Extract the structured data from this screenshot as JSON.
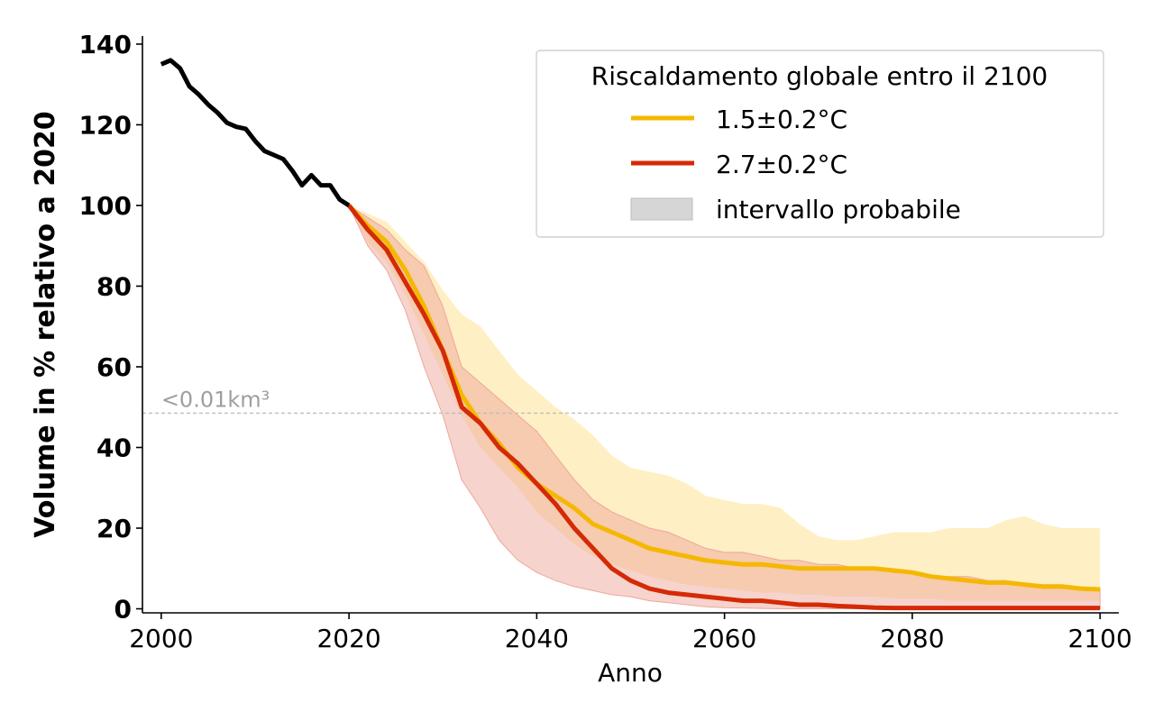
{
  "chart_data": {
    "type": "line",
    "xlabel": "Anno",
    "ylabel": "Volume in % relativo a 2020",
    "xlim": [
      1998,
      2102
    ],
    "ylim": [
      -1,
      142
    ],
    "x_ticks": [
      2000,
      2020,
      2040,
      2060,
      2080,
      2100
    ],
    "y_ticks": [
      0,
      20,
      40,
      60,
      80,
      100,
      120,
      140
    ],
    "grid": false,
    "legend": {
      "title": "Riscaldamento globale entro il 2100",
      "placement": "top-right",
      "entries": [
        {
          "label": "1.5±0.2°C",
          "color": "#f5b800",
          "kind": "line"
        },
        {
          "label": "2.7±0.2°C",
          "color": "#d42a06",
          "kind": "line"
        },
        {
          "label": "intervallo probabile",
          "color": "#d6d6d6",
          "kind": "area"
        }
      ]
    },
    "reference_line": {
      "y": 48.5,
      "label": "<0.01km³",
      "color": "#bdbdbd"
    },
    "colors": {
      "observed": "#000000",
      "low": "#f5b800",
      "low_band": "#ffe9b0",
      "high": "#d42a06",
      "high_band": "#eea79b"
    },
    "observed": {
      "x": [
        2000,
        2001,
        2002,
        2003,
        2004,
        2005,
        2006,
        2007,
        2008,
        2009,
        2010,
        2011,
        2012,
        2013,
        2014,
        2015,
        2016,
        2017,
        2018,
        2019,
        2020
      ],
      "y": [
        135,
        136,
        134,
        129.5,
        127.5,
        125,
        123,
        120.5,
        119.5,
        119,
        116,
        113.5,
        112.5,
        111.5,
        108.5,
        105,
        107.5,
        105,
        105,
        101.5,
        100
      ]
    },
    "series": [
      {
        "name": "1.5±0.2°C",
        "x": [
          2020,
          2022,
          2024,
          2026,
          2028,
          2030,
          2032,
          2034,
          2036,
          2038,
          2040,
          2042,
          2044,
          2046,
          2048,
          2050,
          2052,
          2054,
          2056,
          2058,
          2060,
          2062,
          2064,
          2066,
          2068,
          2070,
          2072,
          2074,
          2076,
          2078,
          2080,
          2082,
          2084,
          2086,
          2088,
          2090,
          2092,
          2094,
          2096,
          2098,
          2100
        ],
        "y": [
          100,
          95,
          91,
          84,
          75,
          64,
          53,
          46,
          41,
          35,
          31,
          28,
          25,
          21,
          19,
          17,
          15,
          14,
          13,
          12,
          11.5,
          11,
          11,
          10.5,
          10,
          10,
          10,
          10,
          10,
          9.5,
          9,
          8,
          7.5,
          7,
          6.5,
          6.5,
          6,
          5.5,
          5.5,
          5,
          4.8
        ],
        "upper": [
          100,
          98,
          96,
          91,
          86,
          79,
          73,
          70,
          64,
          58,
          54,
          50,
          47,
          43,
          38,
          35,
          34,
          33,
          31,
          28,
          27,
          26,
          26,
          25,
          21,
          18,
          17,
          17,
          18,
          19,
          19,
          19,
          20,
          20,
          20,
          22,
          23,
          21,
          20,
          20,
          20
        ],
        "lower": [
          100,
          91,
          86,
          78,
          68,
          58,
          48,
          40,
          35,
          30,
          24,
          20,
          16,
          13,
          11,
          9.5,
          8,
          7,
          6,
          5.5,
          5,
          4.5,
          4,
          4,
          3.5,
          3.5,
          3,
          3,
          3,
          2.5,
          2.5,
          2.5,
          2,
          2,
          2,
          2,
          2,
          2,
          2,
          2,
          2
        ]
      },
      {
        "name": "2.7±0.2°C",
        "x": [
          2020,
          2022,
          2024,
          2026,
          2028,
          2030,
          2032,
          2034,
          2036,
          2038,
          2040,
          2042,
          2044,
          2046,
          2048,
          2050,
          2052,
          2054,
          2056,
          2058,
          2060,
          2062,
          2064,
          2066,
          2068,
          2070,
          2072,
          2074,
          2076,
          2078,
          2080,
          2082,
          2084,
          2086,
          2088,
          2090,
          2092,
          2094,
          2096,
          2098,
          2100
        ],
        "y": [
          100,
          94,
          89,
          81,
          73,
          64,
          50,
          46,
          40,
          36,
          31,
          26,
          20,
          15,
          10,
          7,
          5,
          4,
          3.5,
          3,
          2.5,
          2,
          2,
          1.5,
          1,
          1,
          0.7,
          0.5,
          0.3,
          0.2,
          0.2,
          0.2,
          0.2,
          0.2,
          0.2,
          0.2,
          0.2,
          0.2,
          0.2,
          0.2,
          0.2
        ],
        "upper": [
          100,
          97,
          94,
          89,
          85,
          75,
          60,
          56,
          52,
          48,
          44,
          38,
          32,
          27,
          24,
          22,
          20,
          19,
          17,
          15,
          14,
          14,
          13,
          12,
          12,
          11,
          11,
          10,
          10,
          9,
          9,
          8,
          8,
          8,
          7,
          7,
          6,
          6,
          6,
          5,
          5
        ],
        "lower": [
          100,
          90,
          84,
          74,
          60,
          48,
          32,
          25,
          17,
          12,
          9,
          7,
          5.5,
          4.5,
          3.5,
          3,
          2,
          1.5,
          1,
          0.5,
          0.3,
          0.2,
          0.1,
          0,
          0,
          0,
          0,
          0,
          0,
          0,
          0,
          0,
          0,
          0,
          0,
          0,
          0,
          0,
          0,
          0,
          0
        ]
      }
    ]
  }
}
